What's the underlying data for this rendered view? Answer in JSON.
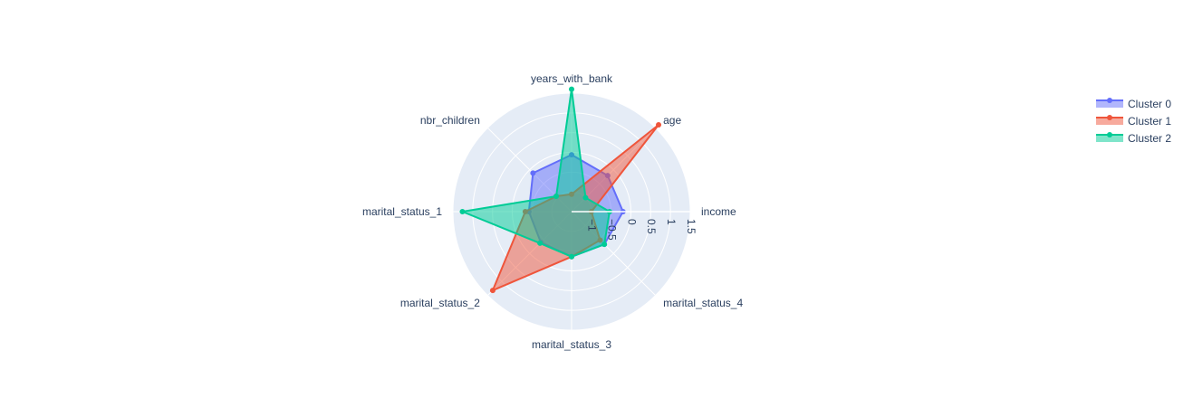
{
  "chart_data": {
    "type": "radar",
    "categories": [
      "income",
      "age",
      "years_with_bank",
      "nbr_children",
      "marital_status_1",
      "marital_status_2",
      "marital_status_3",
      "marital_status_4"
    ],
    "radial_range": [
      -1.5,
      1.5
    ],
    "radial_ticks": [
      "−1",
      "−0.5",
      "0",
      "0.5",
      "1",
      "1.5"
    ],
    "radial_tick_values": [
      -1,
      -0.5,
      0,
      0.5,
      1,
      1.5
    ],
    "grid": true,
    "legend_position": "top-right",
    "series": [
      {
        "name": "Cluster 0",
        "color": "#636efa",
        "values": [
          -0.2,
          -0.21,
          -0.06,
          -0.12,
          -0.42,
          -0.4,
          -0.36,
          -0.33
        ]
      },
      {
        "name": "Cluster 1",
        "color": "#ef553b",
        "values": [
          -1.0,
          1.61,
          -1.06,
          -0.95,
          -0.33,
          1.32,
          -0.36,
          -0.48
        ]
      },
      {
        "name": "Cluster 2",
        "color": "#00cc96",
        "values": [
          -0.54,
          -1.0,
          1.6,
          -0.95,
          1.26,
          -0.37,
          -0.36,
          -0.33
        ]
      }
    ]
  }
}
